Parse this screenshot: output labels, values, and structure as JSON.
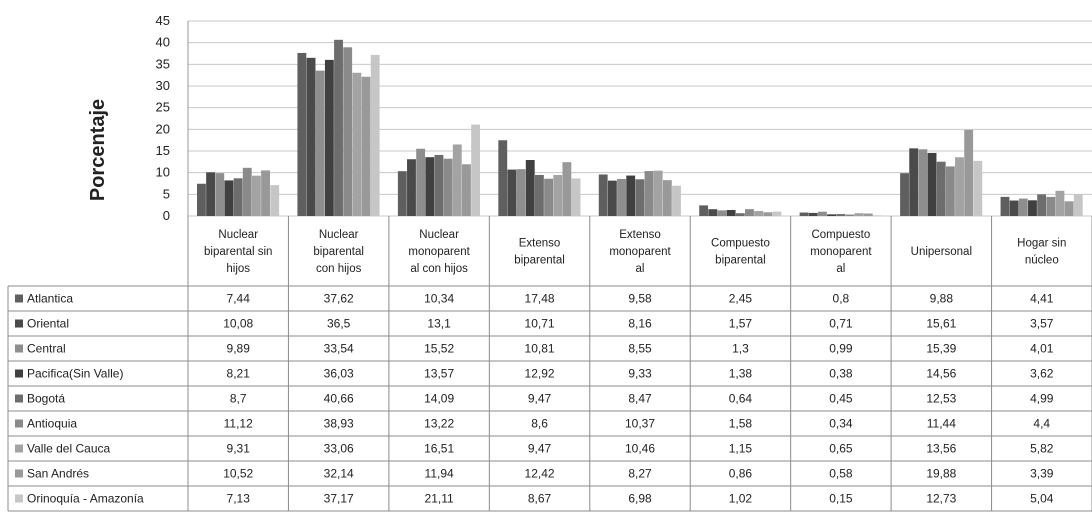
{
  "chart_data": {
    "type": "bar",
    "ylabel": "Porcentaje",
    "ylim": [
      0,
      45
    ],
    "yticks": [
      0,
      5,
      10,
      15,
      20,
      25,
      30,
      35,
      40,
      45
    ],
    "grid": true,
    "legend": "data-table",
    "categories": [
      "Nuclear biparental sin hijos",
      "Nuclear biparental con hijos",
      "Nuclear monoparent al con hijos",
      "Extenso biparental",
      "Extenso monoparent al",
      "Compuesto biparental",
      "Compuesto monoparent al",
      "Unipersonal",
      "Hogar sin núcleo"
    ],
    "category_lines": [
      [
        "Nuclear",
        "biparental sin",
        "hijos"
      ],
      [
        "Nuclear",
        "biparental",
        "con hijos"
      ],
      [
        "Nuclear",
        "monoparent",
        "al con hijos"
      ],
      [
        "Extenso",
        "biparental"
      ],
      [
        "Extenso",
        "monoparent",
        "al"
      ],
      [
        "Compuesto",
        "biparental"
      ],
      [
        "Compuesto",
        "monoparent",
        "al"
      ],
      [
        "Unipersonal"
      ],
      [
        "Hogar sin",
        "núcleo"
      ]
    ],
    "series": [
      {
        "name": "Atlantica",
        "color": "#5f5f5f",
        "values": [
          7.44,
          37.62,
          10.34,
          17.48,
          9.58,
          2.45,
          0.8,
          9.88,
          4.41
        ],
        "labels": [
          "7,44",
          "37,62",
          "10,34",
          "17,48",
          "9,58",
          "2,45",
          "0,8",
          "9,88",
          "4,41"
        ]
      },
      {
        "name": "Oriental",
        "color": "#4a4a4a",
        "values": [
          10.08,
          36.5,
          13.1,
          10.71,
          8.16,
          1.57,
          0.71,
          15.61,
          3.57
        ],
        "labels": [
          "10,08",
          "36,5",
          "13,1",
          "10,71",
          "8,16",
          "1,57",
          "0,71",
          "15,61",
          "3,57"
        ]
      },
      {
        "name": "Central",
        "color": "#8e8e8e",
        "values": [
          9.89,
          33.54,
          15.52,
          10.81,
          8.55,
          1.3,
          0.99,
          15.39,
          4.01
        ],
        "labels": [
          "9,89",
          "33,54",
          "15,52",
          "10,81",
          "8,55",
          "1,3",
          "0,99",
          "15,39",
          "4,01"
        ]
      },
      {
        "name": "Pacifica(Sin Valle)",
        "color": "#404040",
        "values": [
          8.21,
          36.03,
          13.57,
          12.92,
          9.33,
          1.38,
          0.38,
          14.56,
          3.62
        ],
        "labels": [
          "8,21",
          "36,03",
          "13,57",
          "12,92",
          "9,33",
          "1,38",
          "0,38",
          "14,56",
          "3,62"
        ]
      },
      {
        "name": "Bogotá",
        "color": "#6d6d6d",
        "values": [
          8.7,
          40.66,
          14.09,
          9.47,
          8.47,
          0.64,
          0.45,
          12.53,
          4.99
        ],
        "labels": [
          "8,7",
          "40,66",
          "14,09",
          "9,47",
          "8,47",
          "0,64",
          "0,45",
          "12,53",
          "4,99"
        ]
      },
      {
        "name": "Antioquia",
        "color": "#8a8a8a",
        "values": [
          11.12,
          38.93,
          13.22,
          8.6,
          10.37,
          1.58,
          0.34,
          11.44,
          4.4
        ],
        "labels": [
          "11,12",
          "38,93",
          "13,22",
          "8,6",
          "10,37",
          "1,58",
          "0,34",
          "11,44",
          "4,4"
        ]
      },
      {
        "name": "Valle del Cauca",
        "color": "#a3a3a3",
        "values": [
          9.31,
          33.06,
          16.51,
          9.47,
          10.46,
          1.15,
          0.65,
          13.56,
          5.82
        ],
        "labels": [
          "9,31",
          "33,06",
          "16,51",
          "9,47",
          "10,46",
          "1,15",
          "0,65",
          "13,56",
          "5,82"
        ]
      },
      {
        "name": "San Andrés",
        "color": "#999999",
        "values": [
          10.52,
          32.14,
          11.94,
          12.42,
          8.27,
          0.86,
          0.58,
          19.88,
          3.39
        ],
        "labels": [
          "10,52",
          "32,14",
          "11,94",
          "12,42",
          "8,27",
          "0,86",
          "0,58",
          "19,88",
          "3,39"
        ]
      },
      {
        "name": "Orinoquía - Amazonía",
        "color": "#c6c6c6",
        "values": [
          7.13,
          37.17,
          21.11,
          8.67,
          6.98,
          1.02,
          0.15,
          12.73,
          5.04
        ],
        "labels": [
          "7,13",
          "37,17",
          "21,11",
          "8,67",
          "6,98",
          "1,02",
          "0,15",
          "12,73",
          "5,04"
        ]
      }
    ]
  }
}
